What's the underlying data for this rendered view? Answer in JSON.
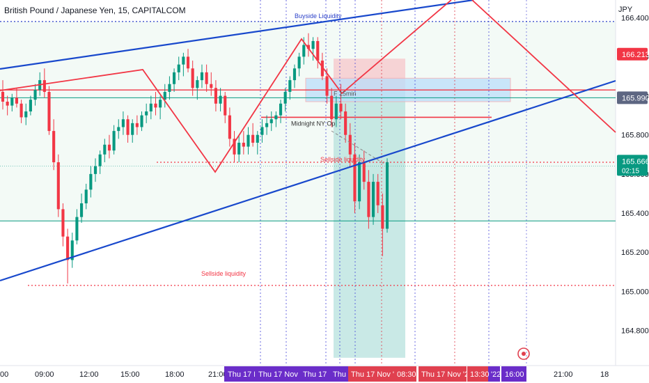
{
  "header": {
    "title": "British Pound / Japanese Yen, 15, CAPITALCOM"
  },
  "axis": {
    "currency": "JPY"
  },
  "price_labels": [
    {
      "name": "current-price-label",
      "value": "165.666",
      "sub": "02:15",
      "color": "#089981"
    },
    {
      "name": "level-label-red",
      "value": "166.213",
      "sub": "",
      "color": "#f23645"
    },
    {
      "name": "level-label-gray",
      "value": "165.990",
      "sub": "",
      "color": "#5d6682"
    }
  ],
  "annotations": {
    "buyside": "Buyside Liquidity",
    "sellside_low": "Sellside liquidity",
    "sellside_mid": "Sellside liquidity",
    "midnight": "Midnight NY Op",
    "fvg": "F 15min"
  },
  "time_axis": {
    "plain_labels": [
      "09:00",
      "12:00",
      "15:00",
      "18:00",
      "21:00",
      "21:00",
      "18"
    ],
    "left_edge_label": "00",
    "purple_labels": [
      "Thu 17 N",
      "Thu 17 Nov '22",
      "Thu 17 N",
      "Thu 17",
      "Thu 17 Nov '22",
      "'22",
      "16:00"
    ],
    "red_labels": [
      "Thu 17 Nov '22",
      "08:30",
      "Thu 17 Nov '22",
      "13:30"
    ]
  },
  "colors": {
    "up": "#089981",
    "down": "#f23645",
    "trend": "#1848cc",
    "zigzag": "#f23645",
    "target_zone": "#b2dfdb",
    "stop_zone": "#f7c6c9",
    "fvg_zone": "#bbdefb",
    "purple_axis": "#6a2dc9"
  },
  "chart_data": {
    "type": "candlestick",
    "title": "British Pound / Japanese Yen, 15, CAPITALCOM",
    "ylabel": "JPY",
    "ylim": [
      164.62,
      166.49
    ],
    "y_ticks": [
      166.4,
      166.2,
      166.0,
      165.8,
      165.6,
      165.4,
      165.2,
      165.0,
      164.8
    ],
    "x_ticks": [
      "09:00",
      "12:00",
      "15:00",
      "18:00",
      "21:00",
      "21:00",
      "18"
    ],
    "marked_prices": [
      165.666,
      166.213,
      165.99
    ],
    "levels": {
      "buyside_liquidity": 166.38,
      "sellside_liquidity_low": 165.03,
      "sellside_liquidity_mid": 165.66,
      "midnight_ny_open": 165.89,
      "red_horizontal": 166.03,
      "green_horizontal": 165.36,
      "green_horizontal_2": 165.64
    },
    "candles_ohlc": [
      [
        166.02,
        166.08,
        165.93,
        165.97
      ],
      [
        165.97,
        166.0,
        165.9,
        165.95
      ],
      [
        165.95,
        166.01,
        165.92,
        165.99
      ],
      [
        165.99,
        166.04,
        165.94,
        165.96
      ],
      [
        165.96,
        165.98,
        165.86,
        165.89
      ],
      [
        165.89,
        165.96,
        165.85,
        165.92
      ],
      [
        165.92,
        166.0,
        165.9,
        165.98
      ],
      [
        165.98,
        166.06,
        165.95,
        166.03
      ],
      [
        166.03,
        166.12,
        166.0,
        166.08
      ],
      [
        166.08,
        166.14,
        165.99,
        166.02
      ],
      [
        166.02,
        166.05,
        165.8,
        165.82
      ],
      [
        165.82,
        165.88,
        165.62,
        165.66
      ],
      [
        165.66,
        165.7,
        165.38,
        165.42
      ],
      [
        165.42,
        165.45,
        165.23,
        165.28
      ],
      [
        165.28,
        165.32,
        165.04,
        165.16
      ],
      [
        165.16,
        165.3,
        165.12,
        165.26
      ],
      [
        165.26,
        165.42,
        165.24,
        165.38
      ],
      [
        165.38,
        165.5,
        165.35,
        165.45
      ],
      [
        165.45,
        165.55,
        165.42,
        165.52
      ],
      [
        165.52,
        165.64,
        165.48,
        165.6
      ],
      [
        165.6,
        165.68,
        165.56,
        165.64
      ],
      [
        165.64,
        165.72,
        165.6,
        165.7
      ],
      [
        165.7,
        165.78,
        165.66,
        165.75
      ],
      [
        165.75,
        165.8,
        165.68,
        165.72
      ],
      [
        165.72,
        165.85,
        165.7,
        165.82
      ],
      [
        165.82,
        165.88,
        165.78,
        165.84
      ],
      [
        165.84,
        165.92,
        165.8,
        165.88
      ],
      [
        165.88,
        165.9,
        165.76,
        165.8
      ],
      [
        165.8,
        165.88,
        165.76,
        165.86
      ],
      [
        165.86,
        165.9,
        165.8,
        165.84
      ],
      [
        165.84,
        165.92,
        165.82,
        165.9
      ],
      [
        165.9,
        165.96,
        165.86,
        165.92
      ],
      [
        165.92,
        166.0,
        165.88,
        165.96
      ],
      [
        165.96,
        166.02,
        165.9,
        165.94
      ],
      [
        165.94,
        166.0,
        165.88,
        165.98
      ],
      [
        165.98,
        166.06,
        165.94,
        166.02
      ],
      [
        166.02,
        166.1,
        165.98,
        166.06
      ],
      [
        166.06,
        166.14,
        166.02,
        166.12
      ],
      [
        166.12,
        166.2,
        166.08,
        166.16
      ],
      [
        166.16,
        166.22,
        166.1,
        166.2
      ],
      [
        166.2,
        166.24,
        166.12,
        166.14
      ],
      [
        166.14,
        166.18,
        166.0,
        166.04
      ],
      [
        166.04,
        166.1,
        165.98,
        166.08
      ],
      [
        166.08,
        166.16,
        166.04,
        166.12
      ],
      [
        166.12,
        166.16,
        166.02,
        166.06
      ],
      [
        166.06,
        166.12,
        166.0,
        166.04
      ],
      [
        166.04,
        166.08,
        165.92,
        165.96
      ],
      [
        165.96,
        166.04,
        165.92,
        166.0
      ],
      [
        166.0,
        166.02,
        165.86,
        165.9
      ],
      [
        165.9,
        165.94,
        165.74,
        165.78
      ],
      [
        165.78,
        165.82,
        165.66,
        165.7
      ],
      [
        165.7,
        165.8,
        165.66,
        165.76
      ],
      [
        165.76,
        165.82,
        165.7,
        165.74
      ],
      [
        165.74,
        165.84,
        165.7,
        165.8
      ],
      [
        165.8,
        165.86,
        165.74,
        165.76
      ],
      [
        165.76,
        165.82,
        165.7,
        165.8
      ],
      [
        165.8,
        165.88,
        165.76,
        165.84
      ],
      [
        165.84,
        165.9,
        165.8,
        165.86
      ],
      [
        165.86,
        165.92,
        165.82,
        165.88
      ],
      [
        165.88,
        165.92,
        165.84,
        165.9
      ],
      [
        165.9,
        165.98,
        165.86,
        165.96
      ],
      [
        165.96,
        166.04,
        165.92,
        166.02
      ],
      [
        166.02,
        166.1,
        165.98,
        166.08
      ],
      [
        166.08,
        166.16,
        166.04,
        166.14
      ],
      [
        166.14,
        166.22,
        166.1,
        166.2
      ],
      [
        166.2,
        166.3,
        166.16,
        166.26
      ],
      [
        166.26,
        166.32,
        166.2,
        166.24
      ],
      [
        166.24,
        166.3,
        166.18,
        166.28
      ],
      [
        166.28,
        166.3,
        166.14,
        166.18
      ],
      [
        166.18,
        166.22,
        166.08,
        166.1
      ],
      [
        166.1,
        166.14,
        165.96,
        166.0
      ],
      [
        166.0,
        166.04,
        165.84,
        165.88
      ],
      [
        165.88,
        166.0,
        165.84,
        165.96
      ],
      [
        165.96,
        166.06,
        165.88,
        165.92
      ],
      [
        165.92,
        165.96,
        165.76,
        165.8
      ],
      [
        165.8,
        165.86,
        165.64,
        165.7
      ],
      [
        165.7,
        165.76,
        165.4,
        165.46
      ],
      [
        165.46,
        165.7,
        165.42,
        165.66
      ],
      [
        165.66,
        165.72,
        165.52,
        165.56
      ],
      [
        165.56,
        165.62,
        165.32,
        165.38
      ],
      [
        165.38,
        165.6,
        165.34,
        165.56
      ],
      [
        165.56,
        165.6,
        165.4,
        165.44
      ],
      [
        165.44,
        165.5,
        165.18,
        165.32
      ],
      [
        165.32,
        165.68,
        165.3,
        165.66
      ]
    ],
    "trendlines": [
      {
        "name": "upper-channel",
        "from": [
          "00",
          165.96
        ],
        "to": [
          "21:00",
          166.49
        ]
      },
      {
        "name": "lower-channel",
        "from": [
          "00",
          165.09
        ],
        "to": [
          "18",
          166.06
        ]
      },
      {
        "name": "channel-upper-right",
        "from": [
          "21:00",
          165.86
        ],
        "to": [
          "18",
          166.09
        ]
      }
    ],
    "zones": {
      "stop": [
        166.03,
        166.19
      ],
      "target": [
        164.66,
        166.03
      ],
      "fvg": [
        165.97,
        166.09
      ]
    }
  }
}
